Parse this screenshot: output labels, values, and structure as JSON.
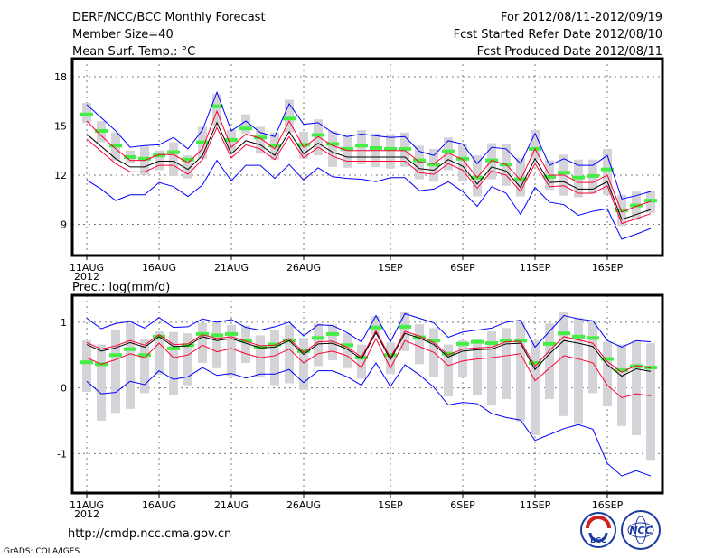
{
  "header": {
    "title": "DERF/NCC/BCC Monthly Forecast",
    "member_size": "Member Size=40",
    "for_range": "For 2012/08/11-2012/09/19",
    "started": "Fcst Started Refer Date 2012/08/10",
    "produced": "Fcst Produced Date 2012/08/11"
  },
  "footer": {
    "url": "http://cmdp.ncc.cma.gov.cn",
    "grads": "GrADS: COLA/IGES",
    "logo_bcc": "BCC",
    "logo_ncc": "NCC"
  },
  "colors": {
    "max_min": "#0000ff",
    "spread": "#ff0033",
    "mean": "#000000",
    "member": "#44ee44",
    "range": "#d4d4d8"
  },
  "chart_data": [
    {
      "type": "line",
      "title": "Mean Surf. Temp.: °C",
      "x_start": "2012-08-11",
      "n_days": 40,
      "xtick_labels": [
        {
          "day": 0,
          "label": "11AUG"
        },
        {
          "day": 5,
          "label": "16AUG"
        },
        {
          "day": 10,
          "label": "21AUG"
        },
        {
          "day": 15,
          "label": "26AUG"
        },
        {
          "day": 21,
          "label": "1SEP"
        },
        {
          "day": 26,
          "label": "6SEP"
        },
        {
          "day": 31,
          "label": "11SEP"
        },
        {
          "day": 36,
          "label": "16SEP"
        }
      ],
      "year_label": "2012",
      "yticks": [
        {
          "v": 9,
          "label": "9"
        },
        {
          "v": 12,
          "label": "12"
        },
        {
          "v": 15,
          "label": "15"
        },
        {
          "v": 18,
          "label": "18"
        }
      ],
      "ylim": [
        7.1,
        19.1
      ],
      "grid": true,
      "series": {
        "max": [
          16.3,
          15.5,
          14.7,
          13.7,
          13.8,
          13.85,
          14.3,
          13.6,
          14.75,
          17.05,
          14.7,
          15.3,
          14.6,
          14.35,
          16.35,
          15.1,
          15.2,
          14.6,
          14.35,
          14.5,
          14.4,
          14.3,
          14.35,
          13.45,
          13.2,
          14.1,
          13.9,
          12.7,
          13.7,
          13.6,
          12.7,
          14.55,
          12.6,
          13.0,
          12.6,
          12.6,
          13.2,
          10.55,
          10.75,
          11.0
        ],
        "min": [
          11.7,
          11.15,
          10.45,
          10.8,
          10.8,
          11.55,
          11.3,
          10.7,
          11.4,
          12.9,
          11.65,
          12.6,
          12.6,
          11.8,
          12.65,
          11.7,
          12.45,
          11.9,
          11.8,
          11.75,
          11.6,
          11.85,
          11.85,
          11.05,
          11.15,
          11.6,
          11.0,
          10.1,
          11.3,
          10.9,
          9.6,
          11.25,
          10.35,
          10.2,
          9.55,
          9.8,
          9.95,
          8.1,
          8.4,
          8.75
        ],
        "mean": [
          14.5,
          13.75,
          13.0,
          12.5,
          12.5,
          12.85,
          12.85,
          12.35,
          13.2,
          15.2,
          13.3,
          14.1,
          13.85,
          13.2,
          14.65,
          13.3,
          13.95,
          13.4,
          13.1,
          13.1,
          13.1,
          13.1,
          13.1,
          12.4,
          12.3,
          12.95,
          12.55,
          11.45,
          12.5,
          12.25,
          11.25,
          13.0,
          11.55,
          11.6,
          11.15,
          11.15,
          11.6,
          9.3,
          9.6,
          9.9
        ],
        "upper": [
          15.3,
          14.4,
          13.6,
          12.9,
          12.9,
          13.25,
          13.25,
          12.75,
          13.6,
          15.9,
          13.7,
          14.5,
          14.25,
          13.6,
          15.3,
          13.7,
          14.35,
          13.8,
          13.5,
          13.5,
          13.5,
          13.5,
          13.5,
          12.8,
          12.7,
          13.35,
          12.95,
          11.85,
          12.9,
          12.65,
          11.7,
          13.6,
          12.0,
          12.0,
          11.55,
          11.55,
          12.0,
          9.75,
          10.1,
          10.4
        ],
        "lower": [
          14.2,
          13.45,
          12.7,
          12.2,
          12.2,
          12.6,
          12.6,
          12.05,
          12.95,
          14.9,
          13.05,
          13.85,
          13.6,
          12.95,
          14.35,
          13.05,
          13.7,
          13.15,
          12.85,
          12.85,
          12.85,
          12.85,
          12.85,
          12.15,
          12.05,
          12.7,
          12.3,
          11.2,
          12.25,
          12.0,
          11.0,
          12.7,
          11.3,
          11.35,
          10.9,
          10.9,
          11.35,
          9.05,
          9.35,
          9.65
        ],
        "member": [
          15.7,
          14.7,
          13.8,
          13.1,
          13.0,
          13.2,
          13.4,
          12.95,
          14.0,
          16.2,
          14.15,
          14.85,
          14.3,
          13.8,
          15.45,
          13.85,
          14.45,
          13.9,
          13.6,
          13.8,
          13.65,
          13.6,
          13.6,
          12.9,
          12.65,
          13.45,
          13.0,
          11.85,
          12.9,
          12.65,
          11.75,
          13.6,
          11.9,
          12.15,
          11.85,
          11.95,
          12.35,
          9.85,
          10.15,
          10.45
        ],
        "range_lo": [
          15.18,
          14.0,
          12.9,
          12.75,
          12.0,
          12.3,
          11.95,
          11.8,
          13.0,
          15.05,
          13.45,
          14.55,
          13.3,
          12.95,
          14.6,
          13.0,
          13.2,
          12.5,
          12.45,
          12.65,
          12.5,
          12.4,
          12.5,
          11.75,
          11.6,
          12.3,
          11.65,
          10.7,
          11.75,
          11.35,
          10.7,
          12.95,
          11.1,
          10.75,
          10.65,
          10.9,
          10.8,
          8.9,
          9.25,
          9.7
        ],
        "range_hi": [
          16.4,
          15.3,
          14.6,
          13.5,
          13.75,
          13.5,
          14.0,
          13.2,
          14.95,
          16.95,
          14.75,
          15.7,
          14.95,
          14.6,
          16.6,
          14.65,
          15.4,
          14.7,
          14.4,
          14.75,
          14.55,
          14.5,
          14.6,
          13.8,
          13.6,
          14.3,
          13.9,
          13.2,
          13.95,
          13.9,
          13.05,
          14.75,
          12.9,
          13.25,
          12.95,
          12.95,
          13.6,
          10.8,
          11.0,
          11.05
        ]
      }
    },
    {
      "type": "line",
      "title": "Prec.: log(mm/d)",
      "x_start": "2012-08-11",
      "n_days": 40,
      "xtick_labels": [
        {
          "day": 0,
          "label": "11AUG"
        },
        {
          "day": 5,
          "label": "16AUG"
        },
        {
          "day": 10,
          "label": "21AUG"
        },
        {
          "day": 15,
          "label": "26AUG"
        },
        {
          "day": 21,
          "label": "1SEP"
        },
        {
          "day": 26,
          "label": "6SEP"
        },
        {
          "day": 31,
          "label": "11SEP"
        },
        {
          "day": 36,
          "label": "16SEP"
        }
      ],
      "year_label": "2012",
      "yticks": [
        {
          "v": -1,
          "label": "-1"
        },
        {
          "v": 0,
          "label": "0"
        },
        {
          "v": 1,
          "label": "1"
        }
      ],
      "ylim": [
        -1.6,
        1.41
      ],
      "grid": true,
      "series": {
        "max": [
          1.06,
          0.9,
          0.98,
          1.01,
          0.91,
          1.07,
          0.92,
          0.93,
          1.05,
          1.0,
          1.04,
          0.92,
          0.88,
          0.93,
          1.0,
          0.79,
          0.96,
          0.95,
          0.84,
          0.7,
          1.1,
          0.7,
          1.13,
          1.06,
          0.99,
          0.77,
          0.85,
          0.88,
          0.91,
          1.0,
          1.03,
          0.62,
          0.86,
          1.1,
          1.05,
          1.02,
          0.72,
          0.62,
          0.72,
          0.7
        ],
        "min": [
          0.1,
          -0.09,
          -0.07,
          0.1,
          0.05,
          0.26,
          0.13,
          0.17,
          0.31,
          0.19,
          0.22,
          0.15,
          0.21,
          0.21,
          0.28,
          0.08,
          0.26,
          0.26,
          0.17,
          0.04,
          0.38,
          0.02,
          0.35,
          0.2,
          0.01,
          -0.26,
          -0.22,
          -0.24,
          -0.39,
          -0.45,
          -0.49,
          -0.8,
          -0.71,
          -0.62,
          -0.56,
          -0.63,
          -1.15,
          -1.34,
          -1.26,
          -1.34
        ],
        "mean": [
          0.66,
          0.56,
          0.61,
          0.69,
          0.62,
          0.78,
          0.63,
          0.64,
          0.78,
          0.72,
          0.75,
          0.68,
          0.61,
          0.62,
          0.72,
          0.51,
          0.67,
          0.68,
          0.59,
          0.44,
          0.84,
          0.43,
          0.83,
          0.76,
          0.66,
          0.47,
          0.56,
          0.58,
          0.59,
          0.67,
          0.68,
          0.28,
          0.52,
          0.72,
          0.68,
          0.63,
          0.35,
          0.18,
          0.29,
          0.25
        ],
        "upper": [
          0.69,
          0.59,
          0.64,
          0.72,
          0.65,
          0.81,
          0.66,
          0.67,
          0.81,
          0.75,
          0.78,
          0.71,
          0.64,
          0.65,
          0.75,
          0.54,
          0.7,
          0.71,
          0.62,
          0.47,
          0.87,
          0.46,
          0.86,
          0.79,
          0.69,
          0.5,
          0.59,
          0.61,
          0.62,
          0.7,
          0.71,
          0.33,
          0.57,
          0.78,
          0.73,
          0.68,
          0.4,
          0.24,
          0.34,
          0.3
        ],
        "lower": [
          0.46,
          0.36,
          0.43,
          0.52,
          0.46,
          0.68,
          0.46,
          0.5,
          0.65,
          0.55,
          0.6,
          0.52,
          0.46,
          0.49,
          0.59,
          0.38,
          0.52,
          0.56,
          0.49,
          0.31,
          0.75,
          0.3,
          0.72,
          0.63,
          0.54,
          0.34,
          0.41,
          0.44,
          0.46,
          0.49,
          0.52,
          0.11,
          0.3,
          0.49,
          0.44,
          0.38,
          0.04,
          -0.15,
          -0.09,
          -0.12
        ],
        "member": [
          0.39,
          0.36,
          0.5,
          0.59,
          0.5,
          0.78,
          0.6,
          0.65,
          0.82,
          0.8,
          0.82,
          0.72,
          0.62,
          0.66,
          0.72,
          0.56,
          0.76,
          0.82,
          0.65,
          0.46,
          0.92,
          0.5,
          0.93,
          0.77,
          0.72,
          0.52,
          0.67,
          0.7,
          0.68,
          0.72,
          0.72,
          0.38,
          0.67,
          0.83,
          0.78,
          0.76,
          0.44,
          0.27,
          0.33,
          0.31
        ],
        "range_lo": [
          -0.06,
          -0.5,
          -0.38,
          -0.32,
          -0.08,
          0.2,
          -0.11,
          0.04,
          0.38,
          0.3,
          0.18,
          0.38,
          0.17,
          0.04,
          0.07,
          -0.03,
          0.33,
          0.42,
          0.3,
          0.14,
          0.82,
          0.21,
          0.56,
          0.36,
          0.17,
          -0.13,
          0.17,
          -0.11,
          -0.26,
          -0.17,
          -0.51,
          -0.72,
          -0.17,
          -0.43,
          -0.55,
          -0.08,
          -0.28,
          -0.58,
          -0.72,
          -1.11
        ],
        "range_hi": [
          0.72,
          0.66,
          0.89,
          0.99,
          0.75,
          0.86,
          0.85,
          0.83,
          0.99,
          1.0,
          0.96,
          0.95,
          0.8,
          0.89,
          0.96,
          0.76,
          0.98,
          0.96,
          0.83,
          0.66,
          1.09,
          0.69,
          1.15,
          0.97,
          0.91,
          0.66,
          0.72,
          0.75,
          0.86,
          0.91,
          1.02,
          0.72,
          0.98,
          1.15,
          1.07,
          1.01,
          0.7,
          0.66,
          0.72,
          0.68
        ]
      }
    }
  ]
}
